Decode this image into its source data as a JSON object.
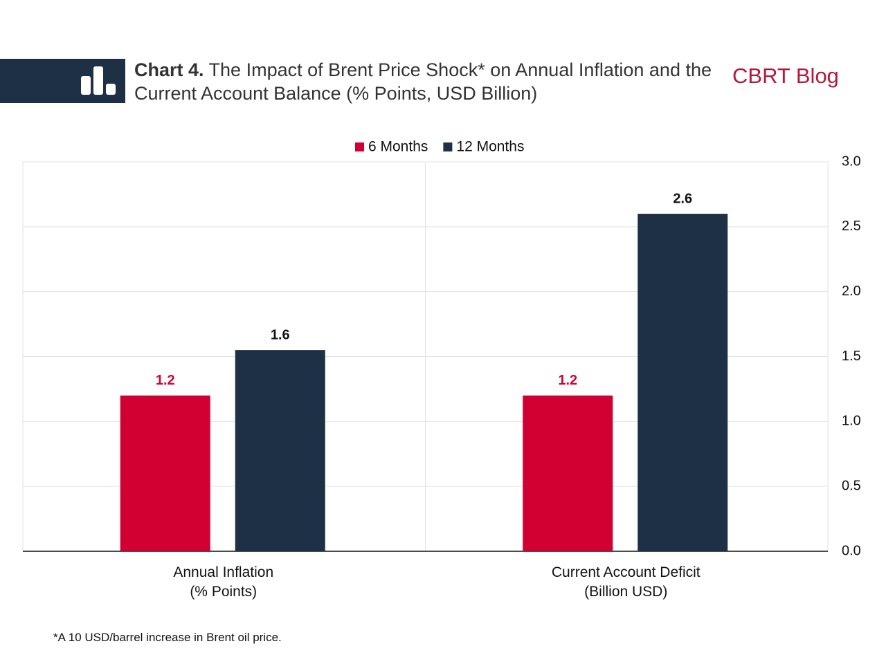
{
  "header": {
    "title_prefix": "Chart 4.",
    "title": "The Impact of Brent Price Shock* on Annual Inflation and the Current Account Balance (% Points, USD Billion)",
    "brand": "CBRT Blog"
  },
  "chart_data": {
    "type": "bar",
    "categories": [
      "Annual Inflation\n(% Points)",
      "Current Account Deficit\n(Billion USD)"
    ],
    "series": [
      {
        "name": "6 Months",
        "color": "#d20032",
        "values": [
          1.2,
          1.2
        ]
      },
      {
        "name": "12 Months",
        "color": "#1e3046",
        "values": [
          1.55,
          2.6
        ],
        "value_labels": [
          "1.6",
          "2.6"
        ]
      }
    ],
    "ylim": [
      0,
      3
    ],
    "yticks": [
      {
        "value": 0,
        "label": "0.0"
      },
      0.5,
      {
        "value": 1,
        "label": "1.0"
      },
      1.5,
      {
        "value": 2,
        "label": "2.0"
      },
      2.5,
      {
        "value": 3,
        "label": "3.0"
      }
    ],
    "grid": true,
    "legend": "top"
  },
  "footnote": "*A 10 USD/barrel increase in Brent oil price."
}
